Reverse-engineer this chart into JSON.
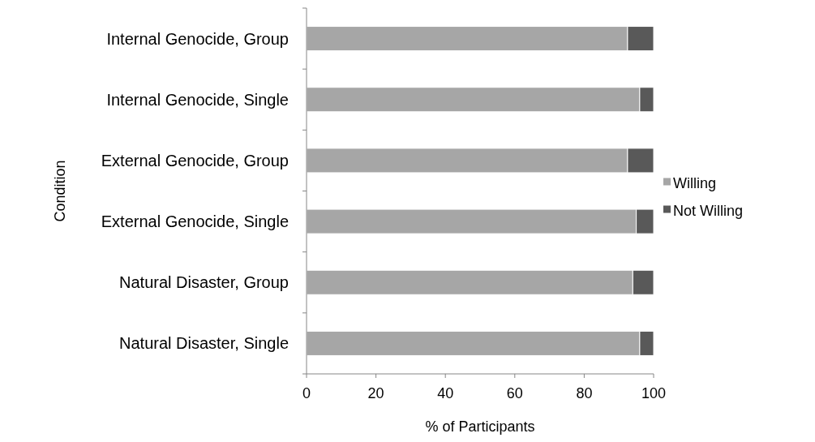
{
  "chart_data": {
    "type": "bar",
    "orientation": "horizontal",
    "stacked": true,
    "xlabel": "% of Participants",
    "ylabel": "Condition",
    "categories": [
      "Internal Genocide, Group",
      "Internal Genocide, Single",
      "External Genocide, Group",
      "External Genocide, Single",
      "Natural Disaster, Group",
      "Natural Disaster, Single"
    ],
    "series": [
      {
        "name": "Willing",
        "color": "#a6a6a6",
        "values": [
          92.5,
          96,
          92.5,
          95,
          94,
          96
        ]
      },
      {
        "name": "Not Willing",
        "color": "#595959",
        "values": [
          7.5,
          4,
          7.5,
          5,
          6,
          4
        ]
      }
    ],
    "xlim": [
      0,
      100
    ],
    "xticks": [
      0,
      20,
      40,
      60,
      80,
      100
    ],
    "grid": false,
    "legend": "right"
  }
}
